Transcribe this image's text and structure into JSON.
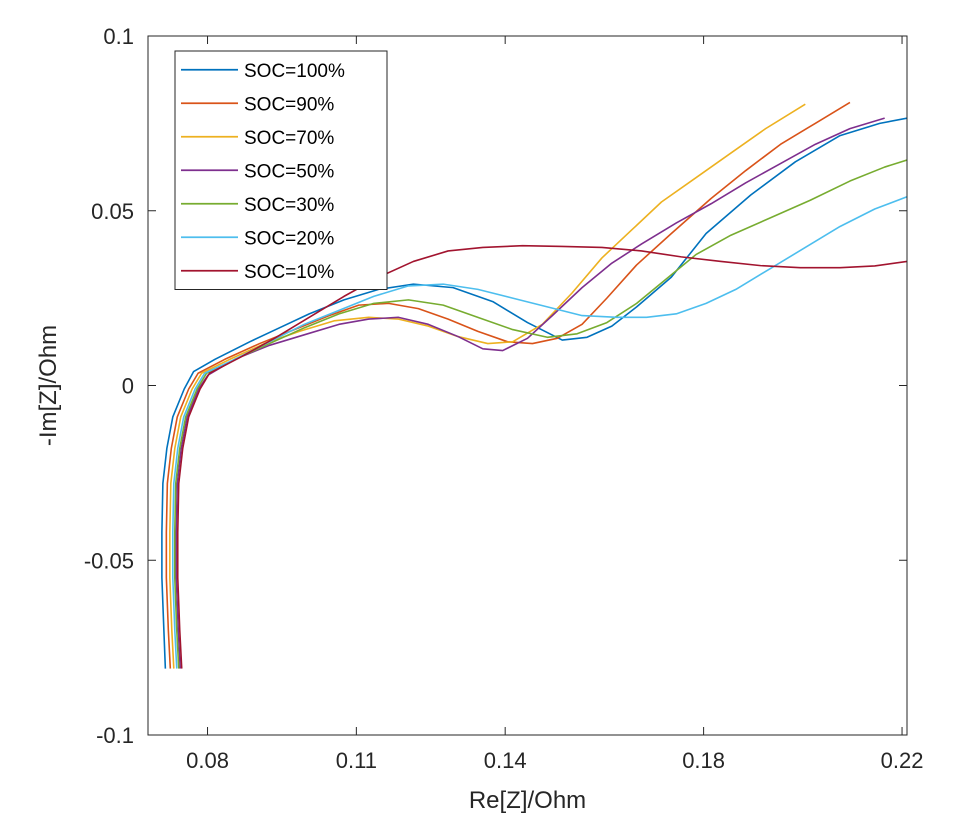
{
  "chart_data": {
    "type": "line",
    "title": "",
    "xlabel": "Re[Z]/Ohm",
    "ylabel": "-Im[Z]/Ohm",
    "xlim": [
      0.068,
      0.221
    ],
    "ylim": [
      -0.1,
      0.1
    ],
    "xticks": [
      0.08,
      0.11,
      0.14,
      0.18,
      0.22
    ],
    "xtick_labels": [
      "0.08",
      "0.11",
      "0.14",
      "0.18",
      "0.22"
    ],
    "yticks": [
      0.1,
      0.05,
      0,
      -0.05,
      -0.1
    ],
    "ytick_labels": [
      "0.1",
      "0.05",
      "0",
      "-0.05",
      "-0.1"
    ],
    "grid": false,
    "legend_position": "top-left",
    "series": [
      {
        "name": "SOC=100%",
        "color": "#0072BD",
        "points": [
          [
            0.0715,
            -0.081
          ],
          [
            0.0712,
            -0.07
          ],
          [
            0.0708,
            -0.055
          ],
          [
            0.0708,
            -0.042
          ],
          [
            0.071,
            -0.028
          ],
          [
            0.0718,
            -0.018
          ],
          [
            0.073,
            -0.009
          ],
          [
            0.0753,
            -0.001
          ],
          [
            0.0772,
            0.004
          ],
          [
            0.0815,
            0.0075
          ],
          [
            0.0885,
            0.0125
          ],
          [
            0.0945,
            0.0165
          ],
          [
            0.1005,
            0.0205
          ],
          [
            0.1075,
            0.0245
          ],
          [
            0.1145,
            0.0275
          ],
          [
            0.1215,
            0.029
          ],
          [
            0.1295,
            0.028
          ],
          [
            0.1375,
            0.024
          ],
          [
            0.1445,
            0.018
          ],
          [
            0.1515,
            0.013
          ],
          [
            0.1565,
            0.0138
          ],
          [
            0.1615,
            0.017
          ],
          [
            0.1665,
            0.0225
          ],
          [
            0.1735,
            0.031
          ],
          [
            0.1805,
            0.0435
          ],
          [
            0.1895,
            0.0545
          ],
          [
            0.1985,
            0.064
          ],
          [
            0.2075,
            0.0715
          ],
          [
            0.2155,
            0.075
          ],
          [
            0.221,
            0.0765
          ]
        ]
      },
      {
        "name": "SOC=90%",
        "color": "#D95319",
        "points": [
          [
            0.0725,
            -0.081
          ],
          [
            0.0721,
            -0.07
          ],
          [
            0.0717,
            -0.055
          ],
          [
            0.0717,
            -0.042
          ],
          [
            0.0719,
            -0.028
          ],
          [
            0.0727,
            -0.018
          ],
          [
            0.0739,
            -0.009
          ],
          [
            0.0762,
            -0.001
          ],
          [
            0.0781,
            0.0035
          ],
          [
            0.0835,
            0.0075
          ],
          [
            0.0905,
            0.012
          ],
          [
            0.0975,
            0.016
          ],
          [
            0.1045,
            0.02
          ],
          [
            0.1105,
            0.023
          ],
          [
            0.1165,
            0.0235
          ],
          [
            0.1225,
            0.022
          ],
          [
            0.1285,
            0.019
          ],
          [
            0.1345,
            0.0155
          ],
          [
            0.1405,
            0.0125
          ],
          [
            0.1455,
            0.012
          ],
          [
            0.1505,
            0.0135
          ],
          [
            0.1555,
            0.0175
          ],
          [
            0.1605,
            0.025
          ],
          [
            0.1665,
            0.0345
          ],
          [
            0.1735,
            0.0435
          ],
          [
            0.1815,
            0.0535
          ],
          [
            0.1885,
            0.0615
          ],
          [
            0.1955,
            0.069
          ],
          [
            0.2025,
            0.075
          ],
          [
            0.2095,
            0.081
          ]
        ]
      },
      {
        "name": "SOC=70%",
        "color": "#EDB120",
        "points": [
          [
            0.0732,
            -0.081
          ],
          [
            0.0728,
            -0.07
          ],
          [
            0.0724,
            -0.055
          ],
          [
            0.0724,
            -0.042
          ],
          [
            0.0726,
            -0.028
          ],
          [
            0.0734,
            -0.018
          ],
          [
            0.0746,
            -0.009
          ],
          [
            0.0769,
            -0.001
          ],
          [
            0.0788,
            0.0035
          ],
          [
            0.0845,
            0.0075
          ],
          [
            0.0915,
            0.012
          ],
          [
            0.0985,
            0.0155
          ],
          [
            0.1055,
            0.0185
          ],
          [
            0.1125,
            0.0195
          ],
          [
            0.1185,
            0.019
          ],
          [
            0.1245,
            0.017
          ],
          [
            0.1305,
            0.014
          ],
          [
            0.1365,
            0.012
          ],
          [
            0.1415,
            0.0125
          ],
          [
            0.1475,
            0.0175
          ],
          [
            0.1535,
            0.0265
          ],
          [
            0.1595,
            0.0365
          ],
          [
            0.1655,
            0.0445
          ],
          [
            0.1715,
            0.0525
          ],
          [
            0.1785,
            0.0595
          ],
          [
            0.1855,
            0.0665
          ],
          [
            0.1925,
            0.0735
          ],
          [
            0.2005,
            0.0805
          ]
        ]
      },
      {
        "name": "SOC=50%",
        "color": "#7E2F8E",
        "points": [
          [
            0.0745,
            -0.081
          ],
          [
            0.0741,
            -0.07
          ],
          [
            0.0737,
            -0.055
          ],
          [
            0.0737,
            -0.042
          ],
          [
            0.0739,
            -0.028
          ],
          [
            0.0747,
            -0.018
          ],
          [
            0.0759,
            -0.009
          ],
          [
            0.0782,
            -0.001
          ],
          [
            0.0801,
            0.003
          ],
          [
            0.0855,
            0.0075
          ],
          [
            0.0925,
            0.0115
          ],
          [
            0.0995,
            0.0145
          ],
          [
            0.1065,
            0.0175
          ],
          [
            0.1125,
            0.019
          ],
          [
            0.1185,
            0.0195
          ],
          [
            0.1245,
            0.0175
          ],
          [
            0.1305,
            0.014
          ],
          [
            0.1355,
            0.0105
          ],
          [
            0.1395,
            0.01
          ],
          [
            0.1445,
            0.0135
          ],
          [
            0.1495,
            0.02
          ],
          [
            0.1555,
            0.028
          ],
          [
            0.1615,
            0.035
          ],
          [
            0.1675,
            0.0405
          ],
          [
            0.1745,
            0.0465
          ],
          [
            0.1815,
            0.052
          ],
          [
            0.1885,
            0.058
          ],
          [
            0.1955,
            0.0635
          ],
          [
            0.2025,
            0.069
          ],
          [
            0.2095,
            0.0735
          ],
          [
            0.2165,
            0.0765
          ]
        ]
      },
      {
        "name": "SOC=30%",
        "color": "#77AC30",
        "points": [
          [
            0.0742,
            -0.081
          ],
          [
            0.0738,
            -0.07
          ],
          [
            0.0734,
            -0.055
          ],
          [
            0.0734,
            -0.042
          ],
          [
            0.0736,
            -0.028
          ],
          [
            0.0744,
            -0.018
          ],
          [
            0.0756,
            -0.009
          ],
          [
            0.0779,
            -0.001
          ],
          [
            0.0798,
            0.0035
          ],
          [
            0.0855,
            0.0075
          ],
          [
            0.0925,
            0.012
          ],
          [
            0.0995,
            0.0165
          ],
          [
            0.1065,
            0.0205
          ],
          [
            0.1135,
            0.0235
          ],
          [
            0.1205,
            0.0245
          ],
          [
            0.1275,
            0.023
          ],
          [
            0.1345,
            0.0195
          ],
          [
            0.1415,
            0.016
          ],
          [
            0.1485,
            0.0138
          ],
          [
            0.1545,
            0.0148
          ],
          [
            0.1605,
            0.018
          ],
          [
            0.1665,
            0.0235
          ],
          [
            0.1725,
            0.0305
          ],
          [
            0.1785,
            0.0375
          ],
          [
            0.1855,
            0.043
          ],
          [
            0.1935,
            0.048
          ],
          [
            0.2015,
            0.053
          ],
          [
            0.2095,
            0.0585
          ],
          [
            0.2165,
            0.0625
          ],
          [
            0.221,
            0.0645
          ]
        ]
      },
      {
        "name": "SOC=20%",
        "color": "#4DBEEE",
        "points": [
          [
            0.0738,
            -0.081
          ],
          [
            0.0734,
            -0.07
          ],
          [
            0.073,
            -0.055
          ],
          [
            0.073,
            -0.042
          ],
          [
            0.0732,
            -0.028
          ],
          [
            0.074,
            -0.018
          ],
          [
            0.0752,
            -0.009
          ],
          [
            0.0775,
            -0.001
          ],
          [
            0.0794,
            0.0035
          ],
          [
            0.0855,
            0.0075
          ],
          [
            0.0925,
            0.0125
          ],
          [
            0.0995,
            0.0175
          ],
          [
            0.1065,
            0.0215
          ],
          [
            0.1135,
            0.0255
          ],
          [
            0.1205,
            0.0285
          ],
          [
            0.1275,
            0.029
          ],
          [
            0.1345,
            0.0275
          ],
          [
            0.1415,
            0.025
          ],
          [
            0.1485,
            0.0225
          ],
          [
            0.1555,
            0.02
          ],
          [
            0.1625,
            0.0195
          ],
          [
            0.1685,
            0.0195
          ],
          [
            0.1745,
            0.0205
          ],
          [
            0.1805,
            0.0235
          ],
          [
            0.1865,
            0.0275
          ],
          [
            0.1935,
            0.0335
          ],
          [
            0.2005,
            0.0395
          ],
          [
            0.2075,
            0.0455
          ],
          [
            0.2145,
            0.0505
          ],
          [
            0.221,
            0.054
          ]
        ]
      },
      {
        "name": "SOC=10%",
        "color": "#A2142F",
        "points": [
          [
            0.0748,
            -0.081
          ],
          [
            0.0744,
            -0.07
          ],
          [
            0.074,
            -0.055
          ],
          [
            0.074,
            -0.042
          ],
          [
            0.0742,
            -0.028
          ],
          [
            0.075,
            -0.018
          ],
          [
            0.0762,
            -0.009
          ],
          [
            0.0785,
            -0.001
          ],
          [
            0.0804,
            0.0035
          ],
          [
            0.0865,
            0.008
          ],
          [
            0.0935,
            0.0135
          ],
          [
            0.1005,
            0.0195
          ],
          [
            0.1075,
            0.0255
          ],
          [
            0.1145,
            0.031
          ],
          [
            0.1215,
            0.0355
          ],
          [
            0.1285,
            0.0385
          ],
          [
            0.1355,
            0.0395
          ],
          [
            0.1435,
            0.04
          ],
          [
            0.1515,
            0.0398
          ],
          [
            0.1595,
            0.0395
          ],
          [
            0.1675,
            0.0385
          ],
          [
            0.1755,
            0.0368
          ],
          [
            0.1835,
            0.0355
          ],
          [
            0.1915,
            0.0343
          ],
          [
            0.1995,
            0.0337
          ],
          [
            0.2075,
            0.0337
          ],
          [
            0.2145,
            0.0342
          ],
          [
            0.221,
            0.0355
          ]
        ]
      }
    ]
  }
}
